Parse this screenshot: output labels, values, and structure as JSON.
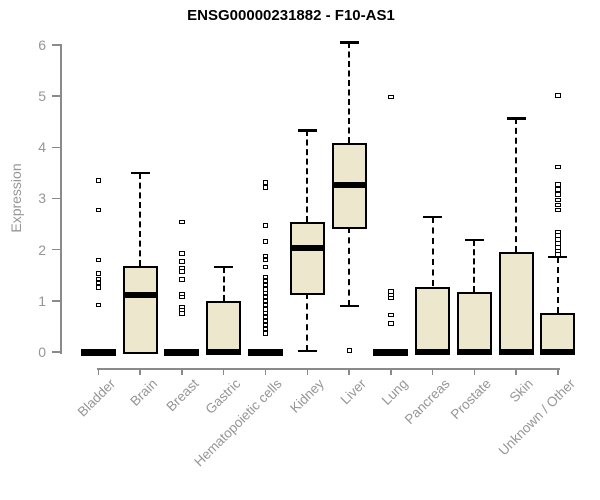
{
  "chart_data": {
    "type": "boxplot",
    "title": "ENSG00000231882 - F10-AS1",
    "ylabel": "Expression",
    "xlabel": "",
    "ylim": [
      0,
      6
    ],
    "yticks": [
      0,
      1,
      2,
      3,
      4,
      5,
      6
    ],
    "grid": false,
    "legend": "none",
    "categories": [
      "Bladder",
      "Brain",
      "Breast",
      "Gastric",
      "Hematopoietic cells",
      "Kidney",
      "Liver",
      "Lung",
      "Pancreas",
      "Prostate",
      "Skin",
      "Unknown / Other"
    ],
    "boxes": [
      {
        "category": "Bladder",
        "low": 0,
        "q1": 0,
        "median": 0,
        "q3": 0,
        "high": 0,
        "outliers": [
          3.36,
          2.78,
          1.8,
          1.54,
          1.43,
          1.35,
          1.27,
          0.92
        ]
      },
      {
        "category": "Brain",
        "low": 0,
        "q1": 0,
        "median": 1.11,
        "q3": 1.68,
        "high": 3.5,
        "outliers": []
      },
      {
        "category": "Breast",
        "low": 0,
        "q1": 0,
        "median": 0,
        "q3": 0,
        "high": 0,
        "outliers": [
          2.55,
          1.93,
          1.77,
          1.64,
          1.58,
          1.42,
          1.14,
          1.08,
          0.88,
          0.82,
          0.76
        ]
      },
      {
        "category": "Gastric",
        "low": 0,
        "q1": 0,
        "median": 0,
        "q3": 1.0,
        "high": 1.67,
        "outliers": []
      },
      {
        "category": "Hematopoietic cells",
        "low": 0,
        "q1": 0,
        "median": 0,
        "q3": 0,
        "high": 0,
        "outliers": [
          3.32,
          3.22,
          2.48,
          2.16,
          1.88,
          1.8,
          1.67,
          1.47,
          1.39,
          1.31,
          1.23,
          1.16,
          1.08,
          1.0,
          0.92,
          0.84,
          0.77,
          0.69,
          0.61,
          0.53,
          0.45,
          0.37
        ]
      },
      {
        "category": "Kidney",
        "low": 0.02,
        "q1": 1.15,
        "median": 2.03,
        "q3": 2.55,
        "high": 4.33,
        "outliers": []
      },
      {
        "category": "Liver",
        "low": 0.9,
        "q1": 2.45,
        "median": 3.26,
        "q3": 4.08,
        "high": 6.05,
        "outliers": [
          0.03
        ]
      },
      {
        "category": "Lung",
        "low": 0,
        "q1": 0,
        "median": 0,
        "q3": 0,
        "high": 0,
        "outliers": [
          4.99,
          1.19,
          1.12,
          1.06,
          0.73,
          0.56
        ]
      },
      {
        "category": "Pancreas",
        "low": 0,
        "q1": 0,
        "median": 0,
        "q3": 1.28,
        "high": 2.64,
        "outliers": []
      },
      {
        "category": "Prostate",
        "low": 0,
        "q1": 0,
        "median": 0,
        "q3": 1.18,
        "high": 2.19,
        "outliers": []
      },
      {
        "category": "Skin",
        "low": 0,
        "q1": 0,
        "median": 0,
        "q3": 1.96,
        "high": 4.57,
        "outliers": []
      },
      {
        "category": "Unknown / Other",
        "low": 0,
        "q1": 0,
        "median": 0,
        "q3": 0.76,
        "high": 1.86,
        "outliers": [
          5.02,
          3.62,
          3.28,
          3.18,
          3.08,
          2.98,
          2.88,
          2.78,
          2.35,
          2.28,
          2.2,
          2.13,
          2.05,
          1.98,
          1.91
        ]
      }
    ],
    "style": {
      "box_fill": "#EDE7CD",
      "box_border": "#000000",
      "median_color": "#000000",
      "whisker_color": "#000000",
      "axis_color": "#8A8A8A",
      "label_color": "#969696",
      "title_color": "#000000"
    }
  }
}
